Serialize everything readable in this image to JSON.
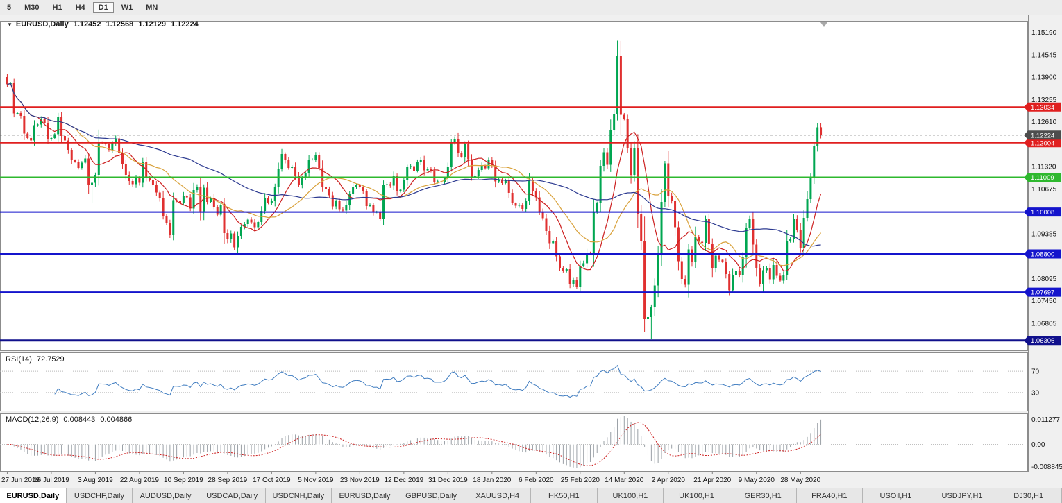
{
  "toolbar": {
    "timeframes": [
      {
        "label": "5",
        "active": false
      },
      {
        "label": "M30",
        "active": false
      },
      {
        "label": "H1",
        "active": false
      },
      {
        "label": "H4",
        "active": false
      },
      {
        "label": "D1",
        "active": true
      },
      {
        "label": "W1",
        "active": false
      },
      {
        "label": "MN",
        "active": false
      }
    ]
  },
  "chart": {
    "title": {
      "symbol": "EURUSD,Daily",
      "open": "1.12452",
      "high": "1.12568",
      "low": "1.12129",
      "close": "1.12224"
    },
    "colors": {
      "bull": "#00a651",
      "bear": "#e03030",
      "rsi": "#3f7cc0",
      "macd_hist": "#9aa0a6",
      "macd_signal": "#cc2020",
      "panel_border": "#8c8c8c",
      "axis_text": "#111111"
    },
    "price_range": {
      "min": 1.06,
      "max": 1.1552
    },
    "y_axis": {
      "ticks": [
        "1.15190",
        "1.14545",
        "1.13900",
        "1.13255",
        "1.12610",
        "1.11965",
        "1.11320",
        "1.10675",
        "1.10030",
        "1.09385",
        "1.08740",
        "1.08095",
        "1.07450",
        "1.06805"
      ]
    },
    "hlines": [
      {
        "price": 1.13034,
        "label": "1.13034",
        "color": "#e01f1f",
        "width": 2
      },
      {
        "price": 1.12004,
        "label": "1.12004",
        "color": "#e01f1f",
        "width": 2
      },
      {
        "price": 1.11009,
        "label": "1.11009",
        "color": "#2eb82e",
        "width": 2
      },
      {
        "price": 1.10008,
        "label": "1.10008",
        "color": "#1414cc",
        "width": 2
      },
      {
        "price": 1.088,
        "label": "1.08800",
        "color": "#1414cc",
        "width": 2
      },
      {
        "price": 1.07697,
        "label": "1.07697",
        "color": "#1414cc",
        "width": 2
      },
      {
        "price": 1.06306,
        "label": "1.06306",
        "color": "#10108c",
        "width": 3
      }
    ],
    "current_price": {
      "price": 1.12224,
      "label": "1.12224",
      "color": "#4d4d4d"
    }
  },
  "chart_data": {
    "type": "candlestick",
    "symbol": "EURUSD",
    "timeframe": "Daily",
    "title": "EURUSD,Daily 1.12452 1.12568 1.12129 1.12224",
    "x_labels": [
      "27 Jun 2019",
      "16 Jul 2019",
      "3 Aug 2019",
      "22 Aug 2019",
      "10 Sep 2019",
      "28 Sep 2019",
      "17 Oct 2019",
      "5 Nov 2019",
      "23 Nov 2019",
      "12 Dec 2019",
      "31 Dec 2019",
      "18 Jan 2020",
      "6 Feb 2020",
      "25 Feb 2020",
      "14 Mar 2020",
      "2 Apr 2020",
      "21 Apr 2020",
      "9 May 2020",
      "28 May 2020"
    ],
    "label_step": 13,
    "first_open": 1.139,
    "closes": [
      1.1369,
      1.1373,
      1.1285,
      1.1286,
      1.1278,
      1.1227,
      1.1214,
      1.1207,
      1.1251,
      1.1253,
      1.127,
      1.1258,
      1.121,
      1.1214,
      1.1225,
      1.1275,
      1.122,
      1.1207,
      1.118,
      1.115,
      1.1146,
      1.1128,
      1.1143,
      1.1155,
      1.1078,
      1.1085,
      1.1108,
      1.1202,
      1.12,
      1.1198,
      1.118,
      1.1201,
      1.1213,
      1.1171,
      1.1139,
      1.1108,
      1.109,
      1.1081,
      1.11,
      1.1085,
      1.1145,
      1.1101,
      1.1092,
      1.1078,
      1.1057,
      1.1041,
      1.0989,
      1.0968,
      1.0936,
      1.1035,
      1.1034,
      1.1028,
      1.1047,
      1.1043,
      1.1011,
      1.1064,
      1.1073,
      1.1003,
      1.1071,
      1.103,
      1.1041,
      1.1015,
      1.0993,
      1.102,
      1.094,
      1.0922,
      1.0939,
      1.0899,
      1.0932,
      1.0958,
      1.0966,
      1.0979,
      1.0971,
      1.0957,
      1.0972,
      1.1004,
      1.104,
      1.1028,
      1.1033,
      1.1074,
      1.1125,
      1.1168,
      1.115,
      1.1128,
      1.1131,
      1.1106,
      1.108,
      1.1101,
      1.1112,
      1.1152,
      1.1152,
      1.1166,
      1.1127,
      1.1074,
      1.1067,
      1.1049,
      1.1017,
      1.1032,
      1.1009,
      1.1005,
      1.1022,
      1.1052,
      1.1073,
      1.1078,
      1.1074,
      1.106,
      1.1018,
      1.1021,
      1.1,
      1.1001,
      1.0981,
      1.1078,
      1.1081,
      1.1077,
      1.1104,
      1.106,
      1.1065,
      1.1093,
      1.113,
      1.1133,
      1.112,
      1.1144,
      1.1152,
      1.1121,
      1.1125,
      1.1119,
      1.1087,
      1.1089,
      1.1087,
      1.1098,
      1.1131,
      1.1199,
      1.1212,
      1.1172,
      1.116,
      1.1197,
      1.1153,
      1.1103,
      1.1106,
      1.1122,
      1.1134,
      1.1127,
      1.115,
      1.1136,
      1.1089,
      1.1095,
      1.1084,
      1.1093,
      1.1056,
      1.1026,
      1.1019,
      1.1022,
      1.101,
      1.1032,
      1.1093,
      1.106,
      1.1043,
      1.1,
      1.0983,
      1.0946,
      1.0911,
      1.0916,
      1.0873,
      1.084,
      1.0831,
      1.0836,
      1.0792,
      1.0806,
      1.0784,
      1.0846,
      1.0853,
      1.0882,
      1.088,
      1.1001,
      1.1026,
      1.1134,
      1.1173,
      1.1137,
      1.1238,
      1.1284,
      1.1451,
      1.1281,
      1.127,
      1.1184,
      1.1108,
      1.1184,
      1.0995,
      1.0916,
      1.0692,
      1.0698,
      1.0726,
      1.0789,
      1.0881,
      1.103,
      1.1141,
      1.1047,
      1.1033,
      1.0957,
      1.0859,
      1.0808,
      1.0791,
      1.0893,
      1.0857,
      1.093,
      1.0915,
      1.0912,
      1.098,
      1.091,
      1.084,
      1.0875,
      1.0863,
      1.0858,
      1.0822,
      1.0775,
      1.082,
      1.083,
      1.0818,
      1.0872,
      1.0955,
      1.098,
      1.0907,
      1.084,
      1.0794,
      1.0833,
      1.0839,
      1.0807,
      1.0848,
      1.0817,
      1.0803,
      1.082,
      1.0916,
      1.0924,
      1.0981,
      1.0949,
      1.0898,
      1.0984,
      1.1038,
      1.1102,
      1.119,
      1.1245,
      1.1222
    ],
    "wick_overrides": {
      "25": {
        "l": 1.1027
      },
      "48": {
        "l": 1.0926
      },
      "68": {
        "l": 1.0879
      },
      "168": {
        "l": 1.0778
      },
      "180": {
        "h": 1.1495
      },
      "188": {
        "l": 1.0656
      },
      "190": {
        "l": 1.0636
      },
      "194": {
        "h": 1.1148
      },
      "213": {
        "l": 1.0761
      },
      "223": {
        "l": 1.0766
      },
      "239": {
        "h": 1.1257
      }
    },
    "last_candle": {
      "o": 1.12452,
      "h": 1.12568,
      "l": 1.12129,
      "c": 1.12224
    },
    "moving_averages": [
      {
        "period": 10,
        "color": "#cc2020"
      },
      {
        "period": 21,
        "color": "#d9a23c"
      },
      {
        "period": 55,
        "color": "#2b3990"
      }
    ],
    "indicators": {
      "rsi": {
        "label": "RSI(14)",
        "value": "72.7529",
        "period": 14,
        "levels": [
          70,
          30
        ],
        "color": "#3f7cc0"
      },
      "macd": {
        "label": "MACD(12,26,9)",
        "value_main": "0.008443",
        "value_signal": "0.004866",
        "fast": 12,
        "slow": 26,
        "signal": 9,
        "axis_labels": [
          "0.011277",
          "0.00",
          "-0.008845"
        ],
        "hist_color": "#9aa0a6",
        "signal_color": "#cc2020"
      }
    }
  },
  "tabs": [
    {
      "label": "EURUSD,Daily",
      "active": true
    },
    {
      "label": "USDCHF,Daily",
      "active": false
    },
    {
      "label": "AUDUSD,Daily",
      "active": false
    },
    {
      "label": "USDCAD,Daily",
      "active": false
    },
    {
      "label": "USDCNH,Daily",
      "active": false
    },
    {
      "label": "EURUSD,Daily",
      "active": false
    },
    {
      "label": "GBPUSD,Daily",
      "active": false
    },
    {
      "label": "XAUUSD,H4",
      "active": false
    },
    {
      "label": "HK50,H1",
      "active": false
    },
    {
      "label": "UK100,H1",
      "active": false
    },
    {
      "label": "UK100,H1",
      "active": false
    },
    {
      "label": "GER30,H1",
      "active": false
    },
    {
      "label": "FRA40,H1",
      "active": false
    },
    {
      "label": "USOil,H1",
      "active": false
    },
    {
      "label": "USDJPY,H1",
      "active": false
    },
    {
      "label": "DJ30,H1",
      "active": false
    }
  ]
}
